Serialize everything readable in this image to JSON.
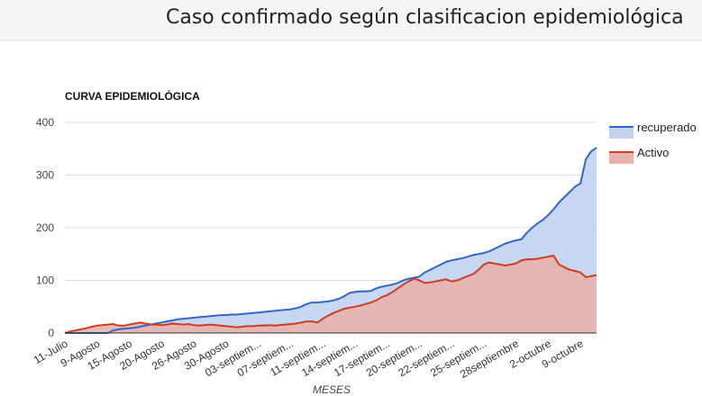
{
  "page": {
    "title": "Caso confirmado según clasificacion epidemiológica"
  },
  "chart_data": {
    "type": "area",
    "title": "CURVA EPIDEMIOLÓGICA",
    "xlabel": "MESES",
    "ylabel": "",
    "ylim": [
      0,
      400
    ],
    "yticks": [
      0,
      100,
      200,
      300,
      400
    ],
    "tick_labels": [
      "11-Julio",
      "9-Agosto",
      "15-Agosto",
      "20-Agosto",
      "26-Agosto",
      "30-Agosto",
      "03-septiem...",
      "07-septiem...",
      "11-septiem...",
      "14-septiem...",
      "17-septiem...",
      "20-septiem...",
      "22-septiem...",
      "25-septiem...",
      "28septiembre",
      "2-octubre",
      "9-octubre"
    ],
    "tick_positions": [
      0,
      6,
      12,
      18,
      24,
      30,
      36,
      42,
      48,
      54,
      60,
      66,
      72,
      78,
      84,
      90,
      96
    ],
    "x_count": 100,
    "legend": "right",
    "series": [
      {
        "name": "recuperado",
        "color": "#3366cc",
        "fill": "#c2d3f0",
        "values": [
          0,
          0,
          0,
          0,
          0,
          0,
          0,
          0,
          0,
          5,
          7,
          8,
          9,
          10,
          12,
          14,
          16,
          18,
          20,
          22,
          24,
          26,
          27,
          28,
          29,
          30,
          31,
          32,
          33,
          34,
          34,
          35,
          35,
          36,
          37,
          38,
          39,
          40,
          41,
          42,
          43,
          44,
          45,
          47,
          50,
          55,
          58,
          58,
          59,
          60,
          62,
          65,
          70,
          76,
          78,
          79,
          79,
          80,
          85,
          88,
          90,
          92,
          95,
          100,
          103,
          105,
          107,
          115,
          120,
          125,
          130,
          135,
          138,
          140,
          142,
          145,
          148,
          150,
          152,
          155,
          160,
          165,
          170,
          173,
          176,
          178,
          190,
          200,
          208,
          215,
          224,
          235,
          248,
          258,
          268,
          278,
          284,
          330,
          345,
          352
        ]
      },
      {
        "name": "Activo",
        "color": "#cc3e22",
        "fill": "#e8b3ac",
        "values": [
          0,
          3,
          5,
          7,
          9,
          12,
          14,
          15,
          16,
          17,
          14,
          14,
          16,
          18,
          20,
          18,
          16,
          16,
          15,
          16,
          18,
          17,
          16,
          17,
          15,
          14,
          15,
          16,
          15,
          14,
          13,
          12,
          11,
          12,
          13,
          13,
          14,
          14,
          15,
          14,
          15,
          16,
          17,
          18,
          20,
          22,
          22,
          20,
          27,
          33,
          38,
          42,
          46,
          48,
          50,
          52,
          55,
          58,
          62,
          68,
          72,
          78,
          85,
          92,
          98,
          103,
          100,
          95,
          96,
          98,
          100,
          102,
          98,
          100,
          104,
          108,
          112,
          120,
          130,
          134,
          132,
          130,
          128,
          130,
          132,
          138,
          140,
          140,
          141,
          143,
          145,
          147,
          130,
          125,
          120,
          118,
          115,
          106,
          108,
          110
        ]
      }
    ]
  }
}
